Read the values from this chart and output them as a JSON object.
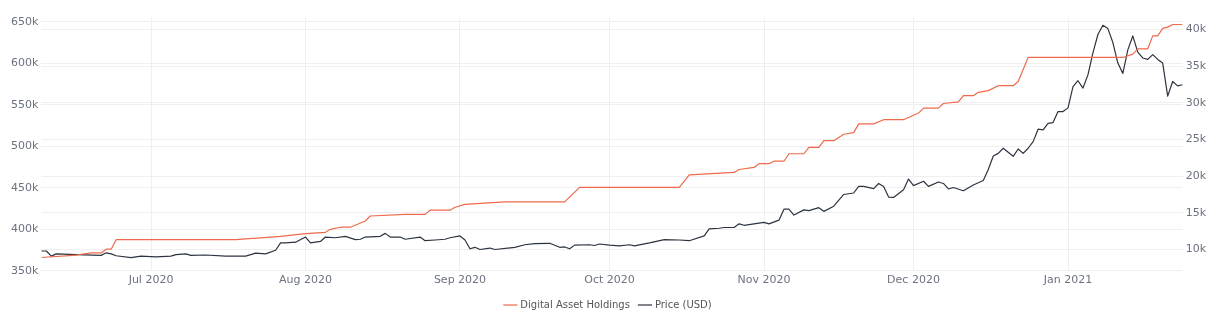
{
  "chart_data": {
    "type": "line",
    "xlim": [
      "2020-06-09",
      "2021-01-24"
    ],
    "xticks": [
      {
        "value": "2020-07-01",
        "label": "Jul 2020"
      },
      {
        "value": "2020-08-01",
        "label": "Aug 2020"
      },
      {
        "value": "2020-09-01",
        "label": "Sep 2020"
      },
      {
        "value": "2020-10-01",
        "label": "Oct 2020"
      },
      {
        "value": "2020-11-01",
        "label": "Nov 2020"
      },
      {
        "value": "2020-12-01",
        "label": "Dec 2020"
      },
      {
        "value": "2021-01-01",
        "label": "Jan 2021"
      }
    ],
    "ylim": [
      350000,
      655000
    ],
    "yticks": [
      {
        "value": 350000,
        "label": "350k"
      },
      {
        "value": 400000,
        "label": "400k"
      },
      {
        "value": 450000,
        "label": "450k"
      },
      {
        "value": 500000,
        "label": "500k"
      },
      {
        "value": 550000,
        "label": "550k"
      },
      {
        "value": 600000,
        "label": "600k"
      },
      {
        "value": 650000,
        "label": "650k"
      }
    ],
    "y2lim": [
      7100,
      41600
    ],
    "y2ticks": [
      {
        "value": 10000,
        "label": "10k"
      },
      {
        "value": 15000,
        "label": "15k"
      },
      {
        "value": 20000,
        "label": "20k"
      },
      {
        "value": 25000,
        "label": "25k"
      },
      {
        "value": 30000,
        "label": "30k"
      },
      {
        "value": 35000,
        "label": "35k"
      },
      {
        "value": 40000,
        "label": "40k"
      }
    ],
    "grid": true,
    "legend": "bottom",
    "marker": "none",
    "line_style": "solid",
    "series": [
      {
        "name": "Digital Asset Holdings",
        "color": "#ef6a4c",
        "x": [
          "2020-06-09",
          "2020-06-16",
          "2020-06-19",
          "2020-06-21",
          "2020-06-22",
          "2020-06-23",
          "2020-06-24",
          "2020-07-18",
          "2020-07-27",
          "2020-08-01",
          "2020-08-05",
          "2020-08-06",
          "2020-08-08",
          "2020-08-10",
          "2020-08-13",
          "2020-08-14",
          "2020-08-21",
          "2020-08-25",
          "2020-08-26",
          "2020-08-30",
          "2020-08-31",
          "2020-09-02",
          "2020-09-10",
          "2020-09-22",
          "2020-09-25",
          "2020-10-15",
          "2020-10-17",
          "2020-10-26",
          "2020-10-27",
          "2020-10-30",
          "2020-10-31",
          "2020-11-02",
          "2020-11-03",
          "2020-11-05",
          "2020-11-06",
          "2020-11-09",
          "2020-11-10",
          "2020-11-12",
          "2020-11-13",
          "2020-11-15",
          "2020-11-17",
          "2020-11-19",
          "2020-11-20",
          "2020-11-23",
          "2020-11-25",
          "2020-11-29",
          "2020-12-02",
          "2020-12-03",
          "2020-12-06",
          "2020-12-07",
          "2020-12-10",
          "2020-12-11",
          "2020-12-13",
          "2020-12-14",
          "2020-12-16",
          "2020-12-18",
          "2020-12-21",
          "2020-12-22",
          "2020-12-24",
          "2021-01-12",
          "2021-01-14",
          "2021-01-15",
          "2021-01-17",
          "2021-01-18",
          "2021-01-19",
          "2021-01-20",
          "2021-01-21",
          "2021-01-22",
          "2021-01-24"
        ],
        "values": [
          366000,
          369000,
          371500,
          371500,
          376000,
          376000,
          387500,
          387500,
          391500,
          394800,
          396400,
          400000,
          402500,
          402500,
          410000,
          416000,
          418000,
          418000,
          423000,
          423000,
          426500,
          430000,
          433000,
          433000,
          450500,
          450500,
          465600,
          468500,
          472000,
          474500,
          479000,
          479000,
          482000,
          482000,
          491000,
          491000,
          498600,
          498600,
          506700,
          506700,
          514500,
          516400,
          527000,
          527000,
          532000,
          532000,
          540000,
          546000,
          546000,
          551500,
          553500,
          561000,
          561000,
          565000,
          567000,
          573000,
          573000,
          578000,
          607000,
          607000,
          611000,
          617400,
          617400,
          633000,
          633000,
          642000,
          643500,
          646700,
          646700
        ]
      },
      {
        "name": "Price (USD)",
        "color": "#2c3440",
        "axis": "y2",
        "x": [
          "2020-06-09",
          "2020-06-10",
          "2020-06-11",
          "2020-06-12",
          "2020-06-16",
          "2020-06-21",
          "2020-06-22",
          "2020-06-23",
          "2020-06-24",
          "2020-06-27",
          "2020-06-29",
          "2020-07-02",
          "2020-07-05",
          "2020-07-06",
          "2020-07-08",
          "2020-07-09",
          "2020-07-12",
          "2020-07-16",
          "2020-07-20",
          "2020-07-22",
          "2020-07-24",
          "2020-07-26",
          "2020-07-27",
          "2020-07-28",
          "2020-07-30",
          "2020-08-01",
          "2020-08-02",
          "2020-08-04",
          "2020-08-05",
          "2020-08-07",
          "2020-08-09",
          "2020-08-11",
          "2020-08-12",
          "2020-08-13",
          "2020-08-16",
          "2020-08-17",
          "2020-08-18",
          "2020-08-20",
          "2020-08-21",
          "2020-08-24",
          "2020-08-25",
          "2020-08-27",
          "2020-08-29",
          "2020-08-30",
          "2020-09-01",
          "2020-09-02",
          "2020-09-03",
          "2020-09-04",
          "2020-09-05",
          "2020-09-07",
          "2020-09-08",
          "2020-09-12",
          "2020-09-14",
          "2020-09-16",
          "2020-09-19",
          "2020-09-21",
          "2020-09-22",
          "2020-09-23",
          "2020-09-24",
          "2020-09-27",
          "2020-09-28",
          "2020-09-29",
          "2020-10-01",
          "2020-10-03",
          "2020-10-05",
          "2020-10-06",
          "2020-10-09",
          "2020-10-12",
          "2020-10-15",
          "2020-10-17",
          "2020-10-20",
          "2020-10-21",
          "2020-10-23",
          "2020-10-24",
          "2020-10-26",
          "2020-10-27",
          "2020-10-28",
          "2020-11-01",
          "2020-11-02",
          "2020-11-04",
          "2020-11-05",
          "2020-11-06",
          "2020-11-07",
          "2020-11-09",
          "2020-11-10",
          "2020-11-12",
          "2020-11-13",
          "2020-11-15",
          "2020-11-17",
          "2020-11-19",
          "2020-11-20",
          "2020-11-21",
          "2020-11-23",
          "2020-11-24",
          "2020-11-25",
          "2020-11-26",
          "2020-11-27",
          "2020-11-29",
          "2020-11-30",
          "2020-12-01",
          "2020-12-03",
          "2020-12-04",
          "2020-12-06",
          "2020-12-07",
          "2020-12-08",
          "2020-12-09",
          "2020-12-11",
          "2020-12-13",
          "2020-12-15",
          "2020-12-16",
          "2020-12-17",
          "2020-12-18",
          "2020-12-19",
          "2020-12-21",
          "2020-12-22",
          "2020-12-23",
          "2020-12-24",
          "2020-12-25",
          "2020-12-26",
          "2020-12-27",
          "2020-12-28",
          "2020-12-29",
          "2020-12-30",
          "2020-12-31",
          "2021-01-01",
          "2021-01-02",
          "2021-01-03",
          "2021-01-04",
          "2021-01-05",
          "2021-01-06",
          "2021-01-07",
          "2021-01-08",
          "2021-01-09",
          "2021-01-10",
          "2021-01-11",
          "2021-01-12",
          "2021-01-13",
          "2021-01-14",
          "2021-01-15",
          "2021-01-16",
          "2021-01-17",
          "2021-01-18",
          "2021-01-19",
          "2021-01-20",
          "2021-01-21",
          "2021-01-22",
          "2021-01-23",
          "2021-01-24"
        ],
        "values": [
          9800,
          9800,
          9100,
          9400,
          9300,
          9200,
          9550,
          9400,
          9150,
          8900,
          9100,
          9000,
          9100,
          9300,
          9400,
          9200,
          9250,
          9100,
          9100,
          9500,
          9400,
          9900,
          10900,
          10900,
          11000,
          11700,
          10900,
          11100,
          11700,
          11600,
          11800,
          11350,
          11400,
          11700,
          11800,
          12200,
          11700,
          11700,
          11400,
          11700,
          11200,
          11300,
          11400,
          11600,
          11850,
          11300,
          10100,
          10300,
          10000,
          10200,
          10000,
          10300,
          10650,
          10800,
          10850,
          10300,
          10350,
          10100,
          10600,
          10650,
          10550,
          10750,
          10600,
          10500,
          10650,
          10500,
          10900,
          11350,
          11300,
          11200,
          11850,
          12800,
          12900,
          13000,
          13000,
          13500,
          13300,
          13700,
          13500,
          14000,
          15500,
          15500,
          14700,
          15400,
          15300,
          15700,
          15200,
          15900,
          17500,
          17700,
          18600,
          18600,
          18300,
          19000,
          18600,
          17150,
          17100,
          18150,
          19600,
          18700,
          19300,
          18600,
          19200,
          19000,
          18250,
          18450,
          18000,
          18800,
          19400,
          20900,
          22750,
          23100,
          23800,
          22700,
          23700,
          23100,
          23800,
          24700,
          26400,
          26300,
          27200,
          27300,
          28800,
          28800,
          29300,
          32200,
          33000,
          32000,
          33800,
          36800,
          39300,
          40550,
          40100,
          38200,
          35400,
          34000,
          37200,
          39100,
          36900,
          36100,
          35900,
          36550,
          35900,
          35400,
          30900,
          32900,
          32300,
          32450
        ]
      }
    ]
  }
}
